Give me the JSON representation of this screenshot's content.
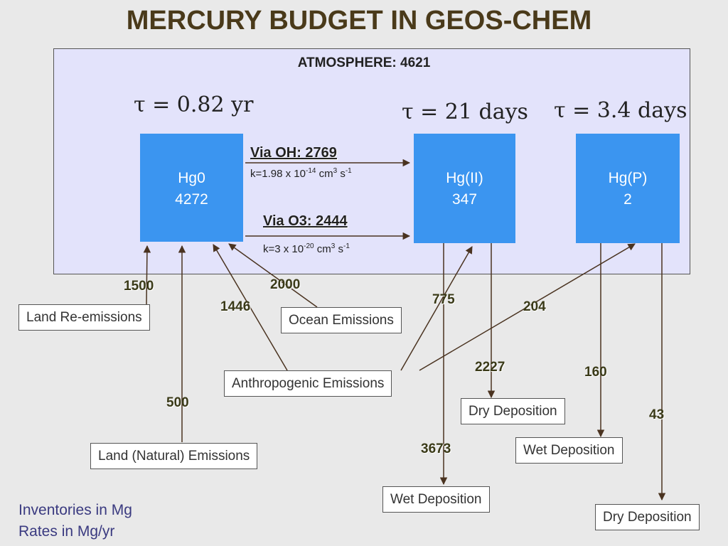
{
  "title": "MERCURY BUDGET IN GEOS-CHEM",
  "atmosphere_label": "ATMOSPHERE: 4621",
  "lifetimes": {
    "hg0": "τ = 0.82 yr",
    "hg2": "τ = 21 days",
    "hgp": "τ = 3.4 days"
  },
  "species": [
    {
      "name": "Hg0",
      "value": "4272"
    },
    {
      "name": "Hg(II)",
      "value": "347"
    },
    {
      "name": "Hg(P)",
      "value": "2"
    }
  ],
  "reactions": {
    "oh_label": "Via OH: 2769",
    "oh_rate": {
      "prefix": "k=1.98 x 10",
      "exp1": "-14",
      "mid": " cm",
      "exp2": "3",
      "mid2": " s",
      "exp3": "-1"
    },
    "o3_label": "Via O3: 2444",
    "o3_rate": {
      "prefix": "k=3 x 10",
      "exp1": "-20",
      "mid": " cm",
      "exp2": "3",
      "mid2": " s",
      "exp3": "-1"
    }
  },
  "fluxes": {
    "land_reemission": "1500",
    "ocean": "2000",
    "anthro_hg0": "1446",
    "anthro_hg2": "775",
    "anthro_hgp": "204",
    "land_natural": "500",
    "hg2_dry": "2227",
    "hg2_wet": "3673",
    "hgp_wet": "160",
    "hgp_dry": "43"
  },
  "boxes": {
    "land_reemissions": "Land Re-emissions",
    "ocean_emissions": "Ocean Emissions",
    "anthropogenic": "Anthropogenic Emissions",
    "land_natural": "Land (Natural) Emissions",
    "dry_deposition_hg2": "Dry Deposition",
    "wet_deposition_hg2": "Wet Deposition",
    "wet_deposition_hgp": "Wet Deposition",
    "dry_deposition_hgp": "Dry Deposition"
  },
  "legend": {
    "line1": "Inventories in Mg",
    "line2": "Rates in Mg/yr"
  },
  "colors": {
    "species_box": "#3b95f0",
    "atmosphere_bg": "#e3e3fb",
    "title": "#4a3a1a",
    "arrow": "#4a3320"
  }
}
